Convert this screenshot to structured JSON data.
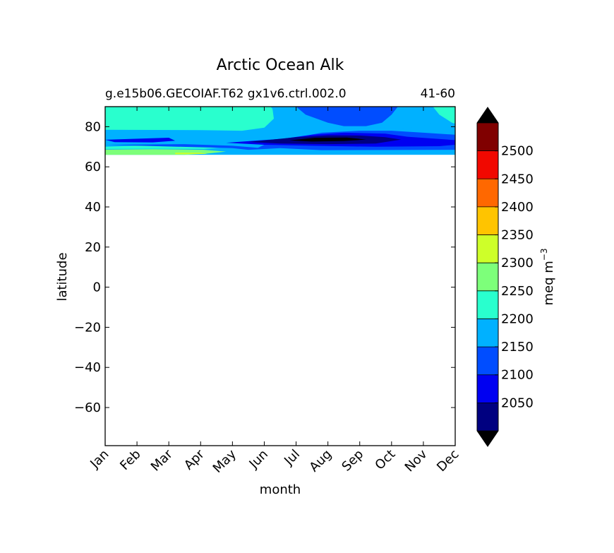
{
  "chart_data": {
    "type": "heatmap",
    "title": "Arctic Ocean Alk",
    "subtitle_left": "g.e15b06.GECOIAF.T62 gx1v6.ctrl.002.0",
    "subtitle_right": "41-60",
    "xlabel": "month",
    "ylabel": "latitude",
    "x_categories": [
      "Jan",
      "Feb",
      "Mar",
      "Apr",
      "May",
      "Jun",
      "Jul",
      "Aug",
      "Sep",
      "Oct",
      "Nov",
      "Dec"
    ],
    "y_ticks": [
      "80",
      "60",
      "40",
      "20",
      "0",
      "−20",
      "−40",
      "−60"
    ],
    "y_tick_values": [
      80,
      60,
      40,
      20,
      0,
      -20,
      -40,
      -60
    ],
    "ylim": [
      -79,
      90
    ],
    "colorbar": {
      "label": "meq m",
      "label_exponent": "−3",
      "levels": [
        2000,
        2050,
        2100,
        2150,
        2200,
        2250,
        2300,
        2350,
        2400,
        2450,
        2500,
        2550
      ],
      "tick_labels": [
        "2050",
        "2100",
        "2150",
        "2200",
        "2250",
        "2300",
        "2350",
        "2400",
        "2450",
        "2500"
      ],
      "tick_values": [
        2050,
        2100,
        2150,
        2200,
        2250,
        2300,
        2350,
        2400,
        2450,
        2500
      ],
      "colors": [
        "#000080",
        "#0000f1",
        "#004dff",
        "#00b1ff",
        "#29ffce",
        "#7dff7a",
        "#ceff29",
        "#ffc400",
        "#ff6800",
        "#f10800",
        "#800000"
      ],
      "extend_colors": {
        "under": "#000000",
        "over": "#000000"
      }
    },
    "data_latitude_range": [
      66,
      90
    ],
    "bands": [
      {
        "level_index": 5,
        "points": [
          [
            0,
            66
          ],
          [
            2.5,
            66
          ],
          [
            3.2,
            66.6
          ],
          [
            3.8,
            67.6
          ],
          [
            3.1,
            68.5
          ],
          [
            1.5,
            68.8
          ],
          [
            0,
            68.6
          ]
        ]
      },
      {
        "level_index": 6,
        "points": [
          [
            2.2,
            66.3
          ],
          [
            3.2,
            66.4
          ],
          [
            3.0,
            67.0
          ],
          [
            2.2,
            67.0
          ]
        ]
      },
      {
        "level_index": 4,
        "points": [
          [
            0,
            78.5
          ],
          [
            3.0,
            78.3
          ],
          [
            4.3,
            78.0
          ],
          [
            5.0,
            79.5
          ],
          [
            5.3,
            84.0
          ],
          [
            5.25,
            90
          ],
          [
            0,
            90
          ]
        ]
      },
      {
        "level_index": 4,
        "points": [
          [
            10.3,
            90
          ],
          [
            10.5,
            86.0
          ],
          [
            10.9,
            82.0
          ],
          [
            11,
            81.5
          ],
          [
            11,
            90
          ]
        ]
      },
      {
        "level_index": 4,
        "points": [
          [
            0,
            70.0
          ],
          [
            1.0,
            70.5
          ],
          [
            2.2,
            70.9
          ],
          [
            3.2,
            70.6
          ],
          [
            3.8,
            69.8
          ],
          [
            3.1,
            68.9
          ],
          [
            1.5,
            69.0
          ],
          [
            0,
            68.9
          ]
        ]
      },
      {
        "level_index": 2,
        "points": [
          [
            0,
            71.0
          ],
          [
            2.5,
            71.3
          ],
          [
            4.0,
            70.5
          ],
          [
            4.8,
            69.5
          ],
          [
            5.0,
            71.0
          ],
          [
            5.5,
            73.0
          ],
          [
            6.8,
            77.0
          ],
          [
            8.0,
            78.0
          ],
          [
            9.0,
            78.0
          ],
          [
            10.0,
            77.0
          ],
          [
            11,
            76.0
          ],
          [
            11,
            68.5
          ],
          [
            6.8,
            68.3
          ],
          [
            5.5,
            69.3
          ],
          [
            4.5,
            68.5
          ],
          [
            4.0,
            69.3
          ]
        ]
      },
      {
        "level_index": 1,
        "points": [
          [
            0,
            73.5
          ],
          [
            2.0,
            74.5
          ],
          [
            2.2,
            73.0
          ],
          [
            1.5,
            72.2
          ],
          [
            0.3,
            72.3
          ]
        ]
      },
      {
        "level_index": 1,
        "points": [
          [
            3.8,
            72.0
          ],
          [
            5.6,
            74.0
          ],
          [
            6.5,
            76.0
          ],
          [
            7.5,
            77.0
          ],
          [
            8.8,
            76.5
          ],
          [
            9.5,
            75.0
          ],
          [
            11,
            73.3
          ],
          [
            11,
            71.0
          ],
          [
            10.5,
            70.3
          ],
          [
            8.5,
            70.0
          ],
          [
            6.5,
            70.5
          ],
          [
            5.0,
            71.0
          ]
        ]
      },
      {
        "level_index": 0,
        "points": [
          [
            4.5,
            72.4
          ],
          [
            6.0,
            74.8
          ],
          [
            7.0,
            75.7
          ],
          [
            8.0,
            75.6
          ],
          [
            8.8,
            74.8
          ],
          [
            9.3,
            73.6
          ],
          [
            8.5,
            71.6
          ],
          [
            7.0,
            71.3
          ],
          [
            5.5,
            71.6
          ]
        ]
      },
      {
        "level_index": -1,
        "points": [
          [
            5.8,
            73.2
          ],
          [
            6.6,
            74.5
          ],
          [
            7.6,
            74.6
          ],
          [
            8.2,
            73.6
          ],
          [
            7.5,
            72.9
          ],
          [
            6.5,
            72.6
          ]
        ]
      },
      {
        "level_index": 3,
        "points": [
          [
            5.2,
            90
          ],
          [
            5.5,
            84.0
          ],
          [
            5.8,
            80.5
          ],
          [
            6.2,
            79.0
          ],
          [
            7.5,
            79.0
          ],
          [
            8.5,
            79.5
          ],
          [
            9.5,
            79.3
          ],
          [
            10.2,
            81.0
          ],
          [
            10.4,
            85.0
          ],
          [
            10.2,
            90
          ]
        ]
      },
      {
        "level_index": 2,
        "points": [
          [
            6.0,
            90
          ],
          [
            6.3,
            86.0
          ],
          [
            7.0,
            82.0
          ],
          [
            7.5,
            80.3
          ],
          [
            8.2,
            80.3
          ],
          [
            8.7,
            82.0
          ],
          [
            9.0,
            86.0
          ],
          [
            9.2,
            90
          ]
        ]
      }
    ]
  }
}
